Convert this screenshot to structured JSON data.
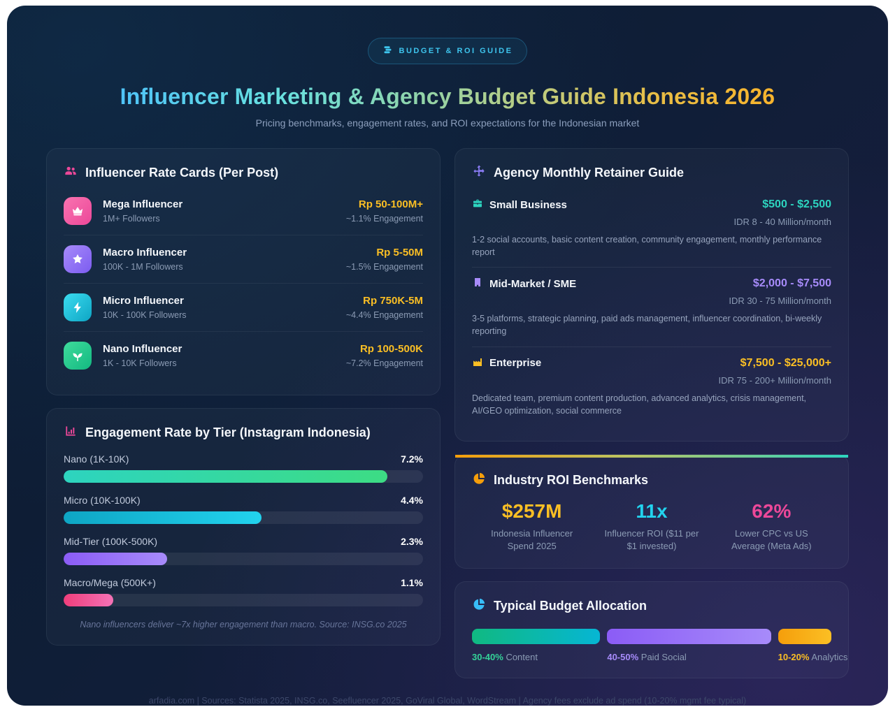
{
  "page": {
    "badge_label": "BUDGET & ROI GUIDE",
    "title": "Influencer Marketing & Agency Budget Guide Indonesia 2026",
    "subtitle": "Pricing benchmarks, engagement rates, and ROI expectations for the Indonesian market",
    "footer": "arfadia.com | Sources: Statista 2025, INSG.co, Seefluencer 2025, GoViral Global, WordStream | Agency fees exclude ad spend (10-20% mgmt fee typical)",
    "accent_badge_color": "#3ec5ee"
  },
  "rate_cards": {
    "title": "Influencer Rate Cards (Per Post)",
    "icon": "users-group-icon",
    "icon_color": "#ec4899",
    "rate_color": "#fbbf24",
    "rows": [
      {
        "icon": "crown-icon",
        "chip_colors": [
          "#f973b0",
          "#ec4899"
        ],
        "name": "Mega Influencer",
        "followers": "1M+ Followers",
        "rate": "Rp 50-100M+",
        "engagement": "~1.1% Engagement"
      },
      {
        "icon": "star-icon",
        "chip_colors": [
          "#a78bfa",
          "#7c5cf0"
        ],
        "name": "Macro Influencer",
        "followers": "100K - 1M Followers",
        "rate": "Rp 5-50M",
        "engagement": "~1.5% Engagement"
      },
      {
        "icon": "bolt-icon",
        "chip_colors": [
          "#3bdcf0",
          "#0ea5c4"
        ],
        "name": "Micro Influencer",
        "followers": "10K - 100K Followers",
        "rate": "Rp 750K-5M",
        "engagement": "~4.4% Engagement"
      },
      {
        "icon": "sprout-icon",
        "chip_colors": [
          "#3fdb9c",
          "#13b981"
        ],
        "name": "Nano Influencer",
        "followers": "1K - 10K Followers",
        "rate": "Rp 100-500K",
        "engagement": "~7.2% Engagement"
      }
    ]
  },
  "retainer": {
    "title": "Agency Monthly Retainer Guide",
    "icon": "move-arrows-icon",
    "icon_color": "#8b7cf6",
    "tiers": [
      {
        "icon": "briefcase-icon",
        "icon_color": "#2dd4bf",
        "name": "Small Business",
        "price": "$500 - $2,500",
        "price_color": "#2dd4bf",
        "idr": "IDR 8 - 40 Million/month",
        "description": "1-2 social accounts, basic content creation, community engagement, monthly performance report"
      },
      {
        "icon": "building-icon",
        "icon_color": "#a78bfa",
        "name": "Mid-Market / SME",
        "price": "$2,000 - $7,500",
        "price_color": "#a78bfa",
        "idr": "IDR 30 - 75 Million/month",
        "description": "3-5 platforms, strategic planning, paid ads management, influencer coordination, bi-weekly reporting"
      },
      {
        "icon": "factory-icon",
        "icon_color": "#fbbf24",
        "name": "Enterprise",
        "price": "$7,500 - $25,000+",
        "price_color": "#fbbf24",
        "idr": "IDR 75 - 200+ Million/month",
        "description": "Dedicated team, premium content production, advanced analytics, crisis management, AI/GEO optimization, social commerce"
      }
    ]
  },
  "chart_data": [
    {
      "id": "engagement-by-tier",
      "type": "bar",
      "orientation": "horizontal",
      "title": "Engagement Rate by Tier (Instagram Indonesia)",
      "icon": "bar-chart-icon",
      "icon_color": "#ec4899",
      "categories": [
        "Nano (1K-10K)",
        "Micro (10K-100K)",
        "Mid-Tier (100K-500K)",
        "Macro/Mega (500K+)"
      ],
      "values": [
        7.2,
        4.4,
        2.3,
        1.1
      ],
      "value_labels": [
        "7.2%",
        "4.4%",
        "2.3%",
        "1.1%"
      ],
      "unit": "%",
      "xlim": [
        0,
        8
      ],
      "grid": false,
      "bar_colors": [
        [
          "#2dd4bf",
          "#3ddc84"
        ],
        [
          "#0ea5c4",
          "#22d3ee"
        ],
        [
          "#8b5cf6",
          "#a78bfa"
        ],
        [
          "#ef3e7b",
          "#f472b6"
        ]
      ],
      "note": "Nano influencers deliver ~7x higher engagement than macro. Source: INSG.co 2025"
    },
    {
      "id": "budget-allocation",
      "type": "bar",
      "subtype": "stacked-horizontal",
      "title": "Typical Budget Allocation",
      "icon": "pie-chart-icon",
      "icon_color": "#38bdf8",
      "segments": [
        {
          "range": "30-40%",
          "label": "Content",
          "width_pct": 36,
          "colors": [
            "#10b981",
            "#06b6d4"
          ],
          "pct_color": "#34d399"
        },
        {
          "range": "40-50%",
          "label": "Paid Social",
          "width_pct": 46,
          "colors": [
            "#8b5cf6",
            "#a78bfa"
          ],
          "pct_color": "#a78bfa"
        },
        {
          "range": "10-20%",
          "label": "Analytics",
          "width_pct": 15,
          "colors": [
            "#f59e0b",
            "#fbbf24"
          ],
          "pct_color": "#fbbf24"
        }
      ]
    }
  ],
  "roi": {
    "title": "Industry ROI Benchmarks",
    "icon": "pie-chart-icon",
    "icon_color": "#f59e0b",
    "stats": [
      {
        "value": "$257M",
        "value_color": "#fbbf24",
        "label": "Indonesia Influencer Spend 2025"
      },
      {
        "value": "11x",
        "value_color": "#22d3ee",
        "label": "Influencer ROI ($11 per $1 invested)"
      },
      {
        "value": "62%",
        "value_color": "#ec4899",
        "label": "Lower CPC vs US Average (Meta Ads)"
      }
    ]
  }
}
